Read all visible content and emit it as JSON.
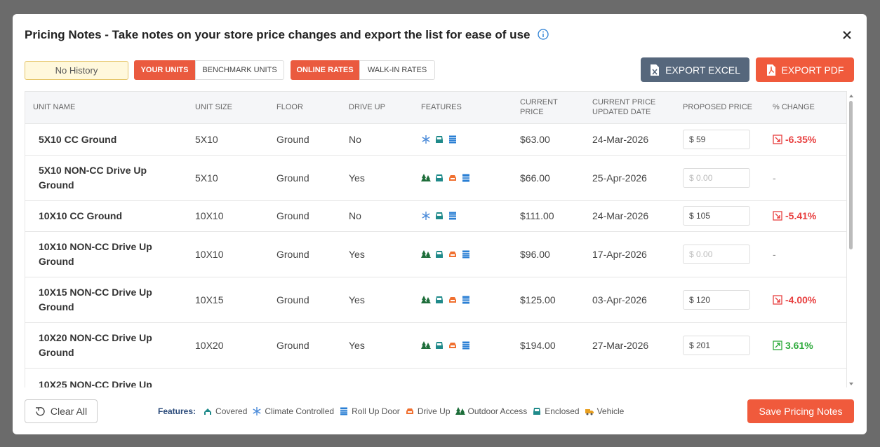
{
  "modal": {
    "title": "Pricing Notes - Take notes on your store price changes and export the list for ease of use"
  },
  "filters": {
    "history": "No History",
    "units": [
      "YOUR UNITS",
      "BENCHMARK UNITS"
    ],
    "rates": [
      "ONLINE RATES",
      "WALK-IN RATES"
    ]
  },
  "buttons": {
    "export_excel": "EXPORT EXCEL",
    "export_pdf": "EXPORT PDF",
    "clear": "Clear All",
    "save": "Save Pricing Notes"
  },
  "table": {
    "headers": [
      "UNIT NAME",
      "UNIT SIZE",
      "FLOOR",
      "DRIVE UP",
      "FEATURES",
      "CURRENT PRICE",
      "CURRENT PRICE UPDATED DATE",
      "PROPOSED PRICE",
      "% CHANGE"
    ],
    "rows": [
      {
        "name": "5X10 CC Ground",
        "size": "5X10",
        "floor": "Ground",
        "drive_up": "No",
        "features": [
          1,
          5,
          2
        ],
        "price": "$63.00",
        "updated": "24-Mar-2026",
        "proposed": {
          "value": "$ 59"
        },
        "change": {
          "text": "-6.35%",
          "trend": "down"
        }
      },
      {
        "name": "5X10 NON-CC Drive Up Ground",
        "size": "5X10",
        "floor": "Ground",
        "drive_up": "Yes",
        "features": [
          4,
          5,
          3,
          2
        ],
        "price": "$66.00",
        "updated": "25-Apr-2026",
        "proposed": {
          "placeholder": "$ 0.00"
        },
        "change": {
          "text": "-"
        }
      },
      {
        "name": "10X10 CC Ground",
        "size": "10X10",
        "floor": "Ground",
        "drive_up": "No",
        "features": [
          1,
          5,
          2
        ],
        "price": "$111.00",
        "updated": "24-Mar-2026",
        "proposed": {
          "value": "$ 105"
        },
        "change": {
          "text": "-5.41%",
          "trend": "down"
        }
      },
      {
        "name": "10X10 NON-CC Drive Up Ground",
        "size": "10X10",
        "floor": "Ground",
        "drive_up": "Yes",
        "features": [
          4,
          5,
          3,
          2
        ],
        "price": "$96.00",
        "updated": "17-Apr-2026",
        "proposed": {
          "placeholder": "$ 0.00"
        },
        "change": {
          "text": "-"
        }
      },
      {
        "name": "10X15 NON-CC Drive Up Ground",
        "size": "10X15",
        "floor": "Ground",
        "drive_up": "Yes",
        "features": [
          4,
          5,
          3,
          2
        ],
        "price": "$125.00",
        "updated": "03-Apr-2026",
        "proposed": {
          "value": "$ 120"
        },
        "change": {
          "text": "-4.00%",
          "trend": "down"
        }
      },
      {
        "name": "10X20 NON-CC Drive Up Ground",
        "size": "10X20",
        "floor": "Ground",
        "drive_up": "Yes",
        "features": [
          4,
          5,
          3,
          2
        ],
        "price": "$194.00",
        "updated": "27-Mar-2026",
        "proposed": {
          "value": "$ 201"
        },
        "change": {
          "text": "3.61%",
          "trend": "up"
        }
      },
      {
        "name": "10X25 NON-CC Drive Up"
      }
    ]
  },
  "legend": {
    "label": "Features:",
    "items": [
      "Covered",
      "Climate Controlled",
      "Roll Up Door",
      "Drive Up",
      "Outdoor Access",
      "Enclosed",
      "Vehicle"
    ]
  }
}
